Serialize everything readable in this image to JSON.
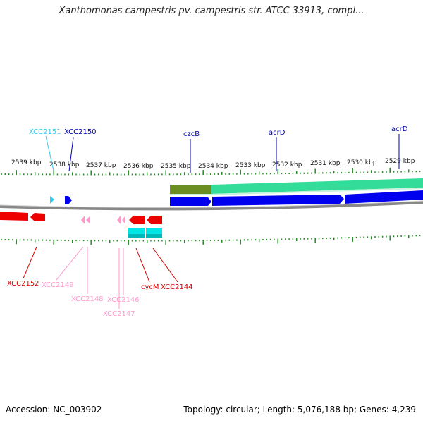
{
  "title": "Xanthomonas campestris pv. campestris str. ATCC 33913, compl...",
  "footer": {
    "accession": "Accession: NC_003902",
    "summary": "Topology: circular; Length: 5,076,188 bp; Genes: 4,239"
  },
  "colors": {
    "ruler": "#228B22",
    "backbone": "#888888",
    "forward_cds_blue": "#0000EE",
    "forward_green": "#33DD99",
    "forward_olive": "#6B8E23",
    "reverse_red": "#EE0000",
    "reverse_pink": "#FF99CC",
    "reverse_cyan": "#00E5E5",
    "light_blue": "#33CCEE"
  },
  "ruler_labels": [
    "2539 kbp",
    "2538 kbp",
    "2537 kbp",
    "2536 kbp",
    "2535 kbp",
    "2534 kbp",
    "2533 kbp",
    "2532 kbp",
    "2531 kbp",
    "2530 kbp",
    "2529 kbp"
  ],
  "gene_labels_top": [
    {
      "text": "XCC2151",
      "color": "#33CCEE"
    },
    {
      "text": "XCC2150",
      "color": "#0000AA"
    },
    {
      "text": "czcB",
      "color": "#0000AA"
    },
    {
      "text": "acrD",
      "color": "#0000AA"
    },
    {
      "text": "acrD",
      "color": "#0000AA"
    }
  ],
  "gene_labels_bottom": [
    {
      "text": "XCC2152",
      "color": "#DD0000"
    },
    {
      "text": "XCC2149",
      "color": "#FF99CC"
    },
    {
      "text": "XCC2148",
      "color": "#FF99CC"
    },
    {
      "text": "XCC2146",
      "color": "#FF99CC"
    },
    {
      "text": "XCC2147",
      "color": "#FF99CC"
    },
    {
      "text": "cycM",
      "color": "#DD0000"
    },
    {
      "text": "XCC2144",
      "color": "#DD0000"
    }
  ]
}
